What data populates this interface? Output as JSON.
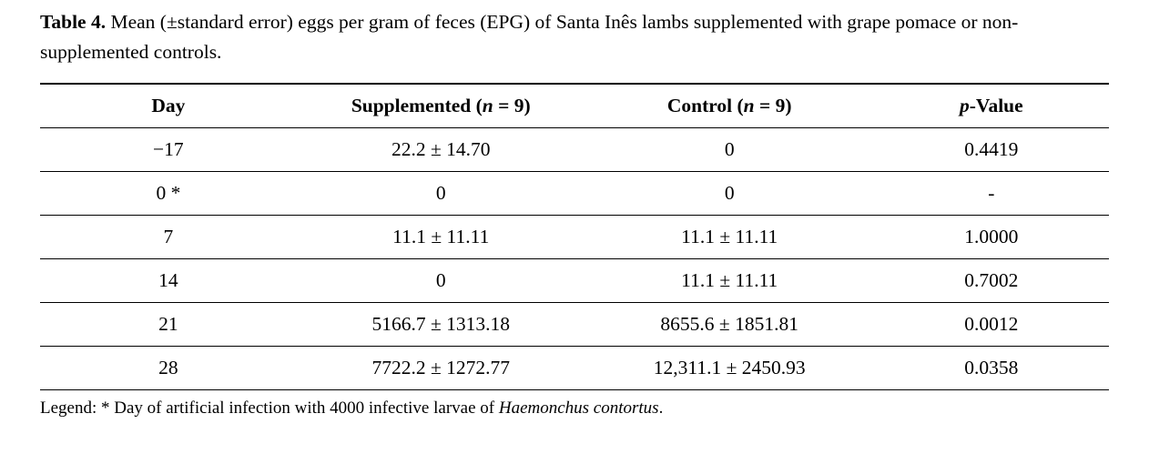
{
  "caption": {
    "label": "Table 4.",
    "text": " Mean (±standard error) eggs per gram of feces (EPG) of Santa Inês lambs supplemented with grape pomace or non-supplemented controls."
  },
  "table": {
    "headers": {
      "day": "Day",
      "supplemented_prefix": "Supplemented (",
      "supplemented_italic": "n",
      "supplemented_suffix": " = 9)",
      "control_prefix": "Control (",
      "control_italic": "n",
      "control_suffix": " = 9)",
      "pvalue_italic": "p",
      "pvalue_suffix": "-Value"
    },
    "rows": [
      {
        "day": "−17",
        "supplemented": "22.2 ± 14.70",
        "control": "0",
        "p": "0.4419"
      },
      {
        "day": "0 *",
        "supplemented": "0",
        "control": "0",
        "p": "-"
      },
      {
        "day": "7",
        "supplemented": "11.1 ± 11.11",
        "control": "11.1 ± 11.11",
        "p": "1.0000"
      },
      {
        "day": "14",
        "supplemented": "0",
        "control": "11.1 ± 11.11",
        "p": "0.7002"
      },
      {
        "day": "21",
        "supplemented": "5166.7 ± 1313.18",
        "control": "8655.6 ± 1851.81",
        "p": "0.0012"
      },
      {
        "day": "28",
        "supplemented": "7722.2 ± 1272.77",
        "control": "12,311.1 ± 2450.93",
        "p": "0.0358"
      }
    ]
  },
  "legend": {
    "prefix": "Legend: * Day of artificial infection with 4000 infective larvae of ",
    "species": "Haemonchus contortus",
    "suffix": "."
  }
}
